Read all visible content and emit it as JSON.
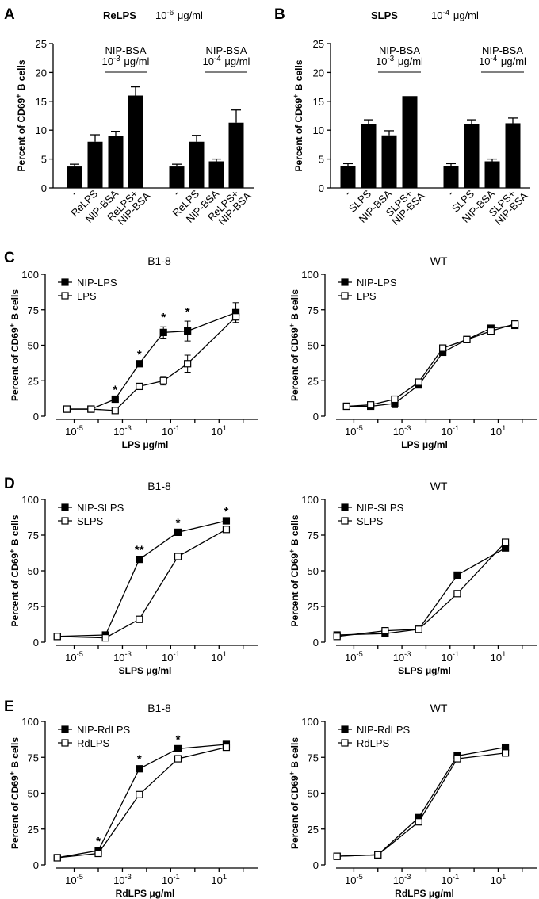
{
  "panel_labels": [
    "A",
    "B",
    "C",
    "D",
    "E"
  ],
  "chart_data": [
    {
      "panel": "A",
      "type": "bar",
      "title": "ReLPS",
      "title_conc": "10-6 μg/ml",
      "ylabel": "Percent of CD69+ B cells",
      "ylim": [
        0,
        25
      ],
      "yticks": [
        0,
        5,
        10,
        15,
        20,
        25
      ],
      "categories": [
        "-",
        "ReLPS",
        "NIP-BSA",
        "ReLPS+ NIP-BSA",
        "-",
        "ReLPS",
        "NIP-BSA",
        "ReLPS+ NIP-BSA"
      ],
      "values": [
        3.7,
        8.0,
        9.0,
        16.0,
        3.7,
        8.0,
        4.6,
        11.3
      ],
      "errors": [
        0.4,
        1.2,
        0.8,
        1.5,
        0.4,
        1.1,
        0.4,
        2.2
      ],
      "annotations": [
        {
          "title": "NIP-BSA",
          "conc": "10-3 μg/ml",
          "cats": [
            2,
            3
          ]
        },
        {
          "title": "NIP-BSA",
          "conc": "10-4 μg/ml",
          "cats": [
            6,
            7
          ]
        }
      ]
    },
    {
      "panel": "B",
      "type": "bar",
      "title": "SLPS",
      "title_conc": "10-4 μg/ml",
      "ylabel": "Percent of CD69+ B cells",
      "ylim": [
        0,
        25
      ],
      "yticks": [
        0,
        5,
        10,
        15,
        20,
        25
      ],
      "categories": [
        "-",
        "SLPS",
        "NIP-BSA",
        "SLPS+ NIP-BSA",
        "-",
        "SLPS",
        "NIP-BSA",
        "SLPS+ NIP-BSA"
      ],
      "values": [
        3.8,
        11.0,
        9.1,
        15.9,
        3.8,
        11.0,
        4.6,
        11.2
      ],
      "errors": [
        0.4,
        0.8,
        0.8,
        0.0,
        0.4,
        0.8,
        0.4,
        0.9
      ],
      "annotations": [
        {
          "title": "NIP-BSA",
          "conc": "10-3 μg/ml",
          "cats": [
            2,
            3
          ]
        },
        {
          "title": "NIP-BSA",
          "conc": "10-4 μg/ml",
          "cats": [
            6,
            7
          ]
        }
      ]
    },
    {
      "panel": "C",
      "type": "line",
      "title": "B1-8",
      "xlabel": "LPS μg/ml",
      "ylabel": "Percent of CD69+ B cells",
      "xscale": "log",
      "xlim": [
        -6.2,
        2.6
      ],
      "ylim": [
        0,
        100
      ],
      "yticks": [
        0,
        25,
        50,
        75,
        100
      ],
      "xtick_exps": [
        -5,
        -3,
        -1,
        1
      ],
      "series": [
        {
          "name": "NIP-LPS",
          "marker": "filled-square",
          "x": [
            5e-06,
            5e-05,
            0.0005,
            0.005,
            0.05,
            0.5,
            50
          ],
          "y": [
            5,
            5,
            12,
            37,
            59,
            60,
            73
          ],
          "err": [
            0,
            0,
            0,
            0,
            4,
            7,
            7
          ]
        },
        {
          "name": "LPS",
          "marker": "open-square",
          "x": [
            5e-06,
            5e-05,
            0.0005,
            0.005,
            0.05,
            0.5,
            50
          ],
          "y": [
            5,
            5,
            4,
            21,
            25,
            37,
            70
          ],
          "err": [
            0,
            0,
            0,
            0,
            3,
            6,
            4
          ]
        }
      ],
      "stars": [
        {
          "x": 0.0005,
          "y": 12,
          "text": "*"
        },
        {
          "x": 0.005,
          "y": 37,
          "text": "*"
        },
        {
          "x": 0.05,
          "y": 63,
          "text": "*"
        },
        {
          "x": 0.5,
          "y": 67,
          "text": "*"
        }
      ]
    },
    {
      "panel": "C",
      "type": "line",
      "title": "WT",
      "xlabel": "LPS μg/ml",
      "ylabel": "Percent of CD69+ B cells",
      "xscale": "log",
      "xlim": [
        -6.2,
        2.6
      ],
      "ylim": [
        0,
        100
      ],
      "yticks": [
        0,
        25,
        50,
        75,
        100
      ],
      "xtick_exps": [
        -5,
        -3,
        -1,
        1
      ],
      "series": [
        {
          "name": "NIP-LPS",
          "marker": "filled-square",
          "x": [
            5e-06,
            5e-05,
            0.0005,
            0.005,
            0.05,
            0.5,
            5,
            50
          ],
          "y": [
            7,
            7,
            9,
            22,
            45,
            54,
            62,
            64
          ],
          "err": [
            0,
            0,
            3,
            0,
            0,
            0,
            0,
            0
          ]
        },
        {
          "name": "LPS",
          "marker": "open-square",
          "x": [
            5e-06,
            5e-05,
            0.0005,
            0.005,
            0.05,
            0.5,
            5,
            50
          ],
          "y": [
            7,
            8,
            12,
            24,
            48,
            54,
            60,
            65
          ],
          "err": [
            0,
            0,
            0,
            0,
            0,
            0,
            0,
            0
          ]
        }
      ],
      "stars": []
    },
    {
      "panel": "D",
      "type": "line",
      "title": "B1-8",
      "xlabel": "SLPS μg/ml",
      "ylabel": "Percent of CD69+ B cells",
      "xscale": "log",
      "xlim": [
        -6.2,
        2.6
      ],
      "ylim": [
        0,
        100
      ],
      "yticks": [
        0,
        25,
        50,
        75,
        100
      ],
      "xtick_exps": [
        -5,
        -3,
        -1,
        1
      ],
      "series": [
        {
          "name": "NIP-SLPS",
          "marker": "filled-square",
          "x": [
            2e-06,
            0.0002,
            0.005,
            0.2,
            20
          ],
          "y": [
            4,
            5,
            58,
            77,
            85
          ]
        },
        {
          "name": "SLPS",
          "marker": "open-square",
          "x": [
            2e-06,
            0.0002,
            0.005,
            0.2,
            20
          ],
          "y": [
            4,
            3,
            16,
            60,
            79
          ]
        }
      ],
      "stars": [
        {
          "x": 0.005,
          "y": 58,
          "text": "**"
        },
        {
          "x": 0.2,
          "y": 77,
          "text": "*"
        },
        {
          "x": 20,
          "y": 85,
          "text": "*"
        }
      ]
    },
    {
      "panel": "D",
      "type": "line",
      "title": "WT",
      "xlabel": "SLPS μg/ml",
      "ylabel": "Percent of CD69+ B cells",
      "xscale": "log",
      "xlim": [
        -6.2,
        2.6
      ],
      "ylim": [
        0,
        100
      ],
      "yticks": [
        0,
        25,
        50,
        75,
        100
      ],
      "xtick_exps": [
        -5,
        -3,
        -1,
        1
      ],
      "series": [
        {
          "name": "NIP-SLPS",
          "marker": "filled-square",
          "x": [
            2e-06,
            0.0002,
            0.005,
            0.2,
            20
          ],
          "y": [
            5,
            6,
            9,
            47,
            66
          ]
        },
        {
          "name": "SLPS",
          "marker": "open-square",
          "x": [
            2e-06,
            0.0002,
            0.005,
            0.2,
            20
          ],
          "y": [
            4,
            8,
            9,
            34,
            70
          ]
        }
      ],
      "stars": []
    },
    {
      "panel": "E",
      "type": "line",
      "title": "B1-8",
      "xlabel": "RdLPS μg/ml",
      "ylabel": "Percent of CD69+ B cells",
      "xscale": "log",
      "xlim": [
        -6.2,
        2.6
      ],
      "ylim": [
        0,
        100
      ],
      "yticks": [
        0,
        25,
        50,
        75,
        100
      ],
      "xtick_exps": [
        -5,
        -3,
        -1,
        1
      ],
      "series": [
        {
          "name": "NIP-RdLPS",
          "marker": "filled-square",
          "x": [
            2e-06,
            0.0001,
            0.005,
            0.2,
            20
          ],
          "y": [
            5,
            10,
            67,
            81,
            84
          ]
        },
        {
          "name": "RdLPS",
          "marker": "open-square",
          "x": [
            2e-06,
            0.0001,
            0.005,
            0.2,
            20
          ],
          "y": [
            5,
            8,
            49,
            74,
            82
          ]
        }
      ],
      "stars": [
        {
          "x": 0.0001,
          "y": 10,
          "text": "*"
        },
        {
          "x": 0.005,
          "y": 67,
          "text": "*"
        },
        {
          "x": 0.2,
          "y": 81,
          "text": "*"
        }
      ]
    },
    {
      "panel": "E",
      "type": "line",
      "title": "WT",
      "xlabel": "RdLPS μg/ml",
      "ylabel": "Percent of CD69+ B cells",
      "xscale": "log",
      "xlim": [
        -6.2,
        2.6
      ],
      "ylim": [
        0,
        100
      ],
      "yticks": [
        0,
        25,
        50,
        75,
        100
      ],
      "xtick_exps": [
        -5,
        -3,
        -1,
        1
      ],
      "series": [
        {
          "name": "NIP-RdLPS",
          "marker": "filled-square",
          "x": [
            2e-06,
            0.0001,
            0.005,
            0.2,
            20
          ],
          "y": [
            6,
            7,
            33,
            76,
            82
          ]
        },
        {
          "name": "RdLPS",
          "marker": "open-square",
          "x": [
            2e-06,
            0.0001,
            0.005,
            0.2,
            20
          ],
          "y": [
            6,
            7,
            30,
            74,
            78
          ]
        }
      ],
      "stars": []
    }
  ]
}
